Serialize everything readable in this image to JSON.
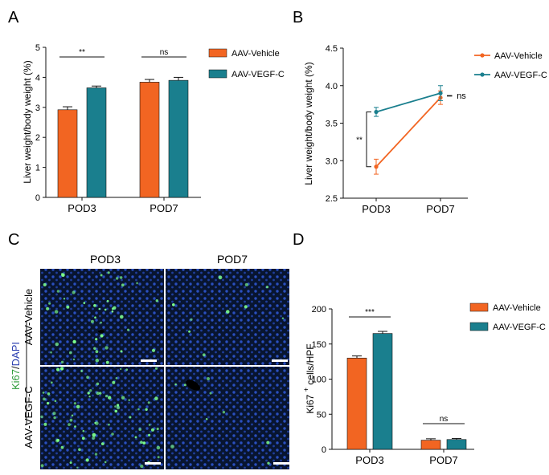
{
  "panels": {
    "A": {
      "letter": "A"
    },
    "B": {
      "letter": "B"
    },
    "C": {
      "letter": "C",
      "col_labels": [
        "POD3",
        "POD7"
      ],
      "row_labels": [
        "AAV-Vehicle",
        "AAV-VEGF-C"
      ],
      "stain_ki67": "Ki67",
      "stain_sep": "/",
      "stain_dapi": "DAPI"
    },
    "D": {
      "letter": "D"
    }
  },
  "colors": {
    "vehicle": "#f26522",
    "vegf": "#1a7f8e",
    "bar_edge": "#111111",
    "green": "#7dff8c",
    "blue_bg": "#0a1a3a"
  },
  "chart_data": [
    {
      "panel": "A",
      "type": "bar",
      "ylabel": "Liver weight/body weight (%)",
      "categories": [
        "POD3",
        "POD7"
      ],
      "ylim": [
        0,
        5
      ],
      "yticks": [
        0,
        1,
        2,
        3,
        4,
        5
      ],
      "series": [
        {
          "name": "AAV-Vehicle",
          "values": [
            2.92,
            3.84
          ],
          "errors": [
            0.1,
            0.09
          ]
        },
        {
          "name": "AAV-VEGF-C",
          "values": [
            3.65,
            3.9
          ],
          "errors": [
            0.06,
            0.1
          ]
        }
      ],
      "significance": [
        "**",
        "ns"
      ],
      "legend": "right"
    },
    {
      "panel": "B",
      "type": "line",
      "ylabel": "Liver weight/body weight (%)",
      "categories": [
        "POD3",
        "POD7"
      ],
      "ylim": [
        2.5,
        4.5
      ],
      "yticks": [
        2.5,
        3.0,
        3.5,
        4.0,
        4.5
      ],
      "ytick_labels": [
        "2.5",
        "3.0",
        "3.5",
        "4.0",
        "4.5"
      ],
      "series": [
        {
          "name": "AAV-Vehicle",
          "values": [
            2.92,
            3.84
          ],
          "errors": [
            0.1,
            0.09
          ]
        },
        {
          "name": "AAV-VEGF-C",
          "values": [
            3.65,
            3.9
          ],
          "errors": [
            0.06,
            0.1
          ]
        }
      ],
      "significance": [
        "**",
        "ns"
      ],
      "legend": "top-right"
    },
    {
      "panel": "D",
      "type": "bar",
      "ylabel": "Ki67 + cells/HPF",
      "ylabel_main": "Ki67",
      "ylabel_sup": "+",
      "ylabel_rest": "cells/HPF",
      "categories": [
        "POD3",
        "POD7"
      ],
      "ylim": [
        0,
        200
      ],
      "yticks": [
        0,
        50,
        100,
        150,
        200
      ],
      "series": [
        {
          "name": "AAV-Vehicle",
          "values": [
            130,
            13
          ],
          "errors": [
            3,
            2
          ]
        },
        {
          "name": "AAV-VEGF-C",
          "values": [
            165,
            14
          ],
          "errors": [
            3,
            1.5
          ]
        }
      ],
      "significance": [
        "***",
        "ns"
      ],
      "legend": "top-right"
    }
  ]
}
